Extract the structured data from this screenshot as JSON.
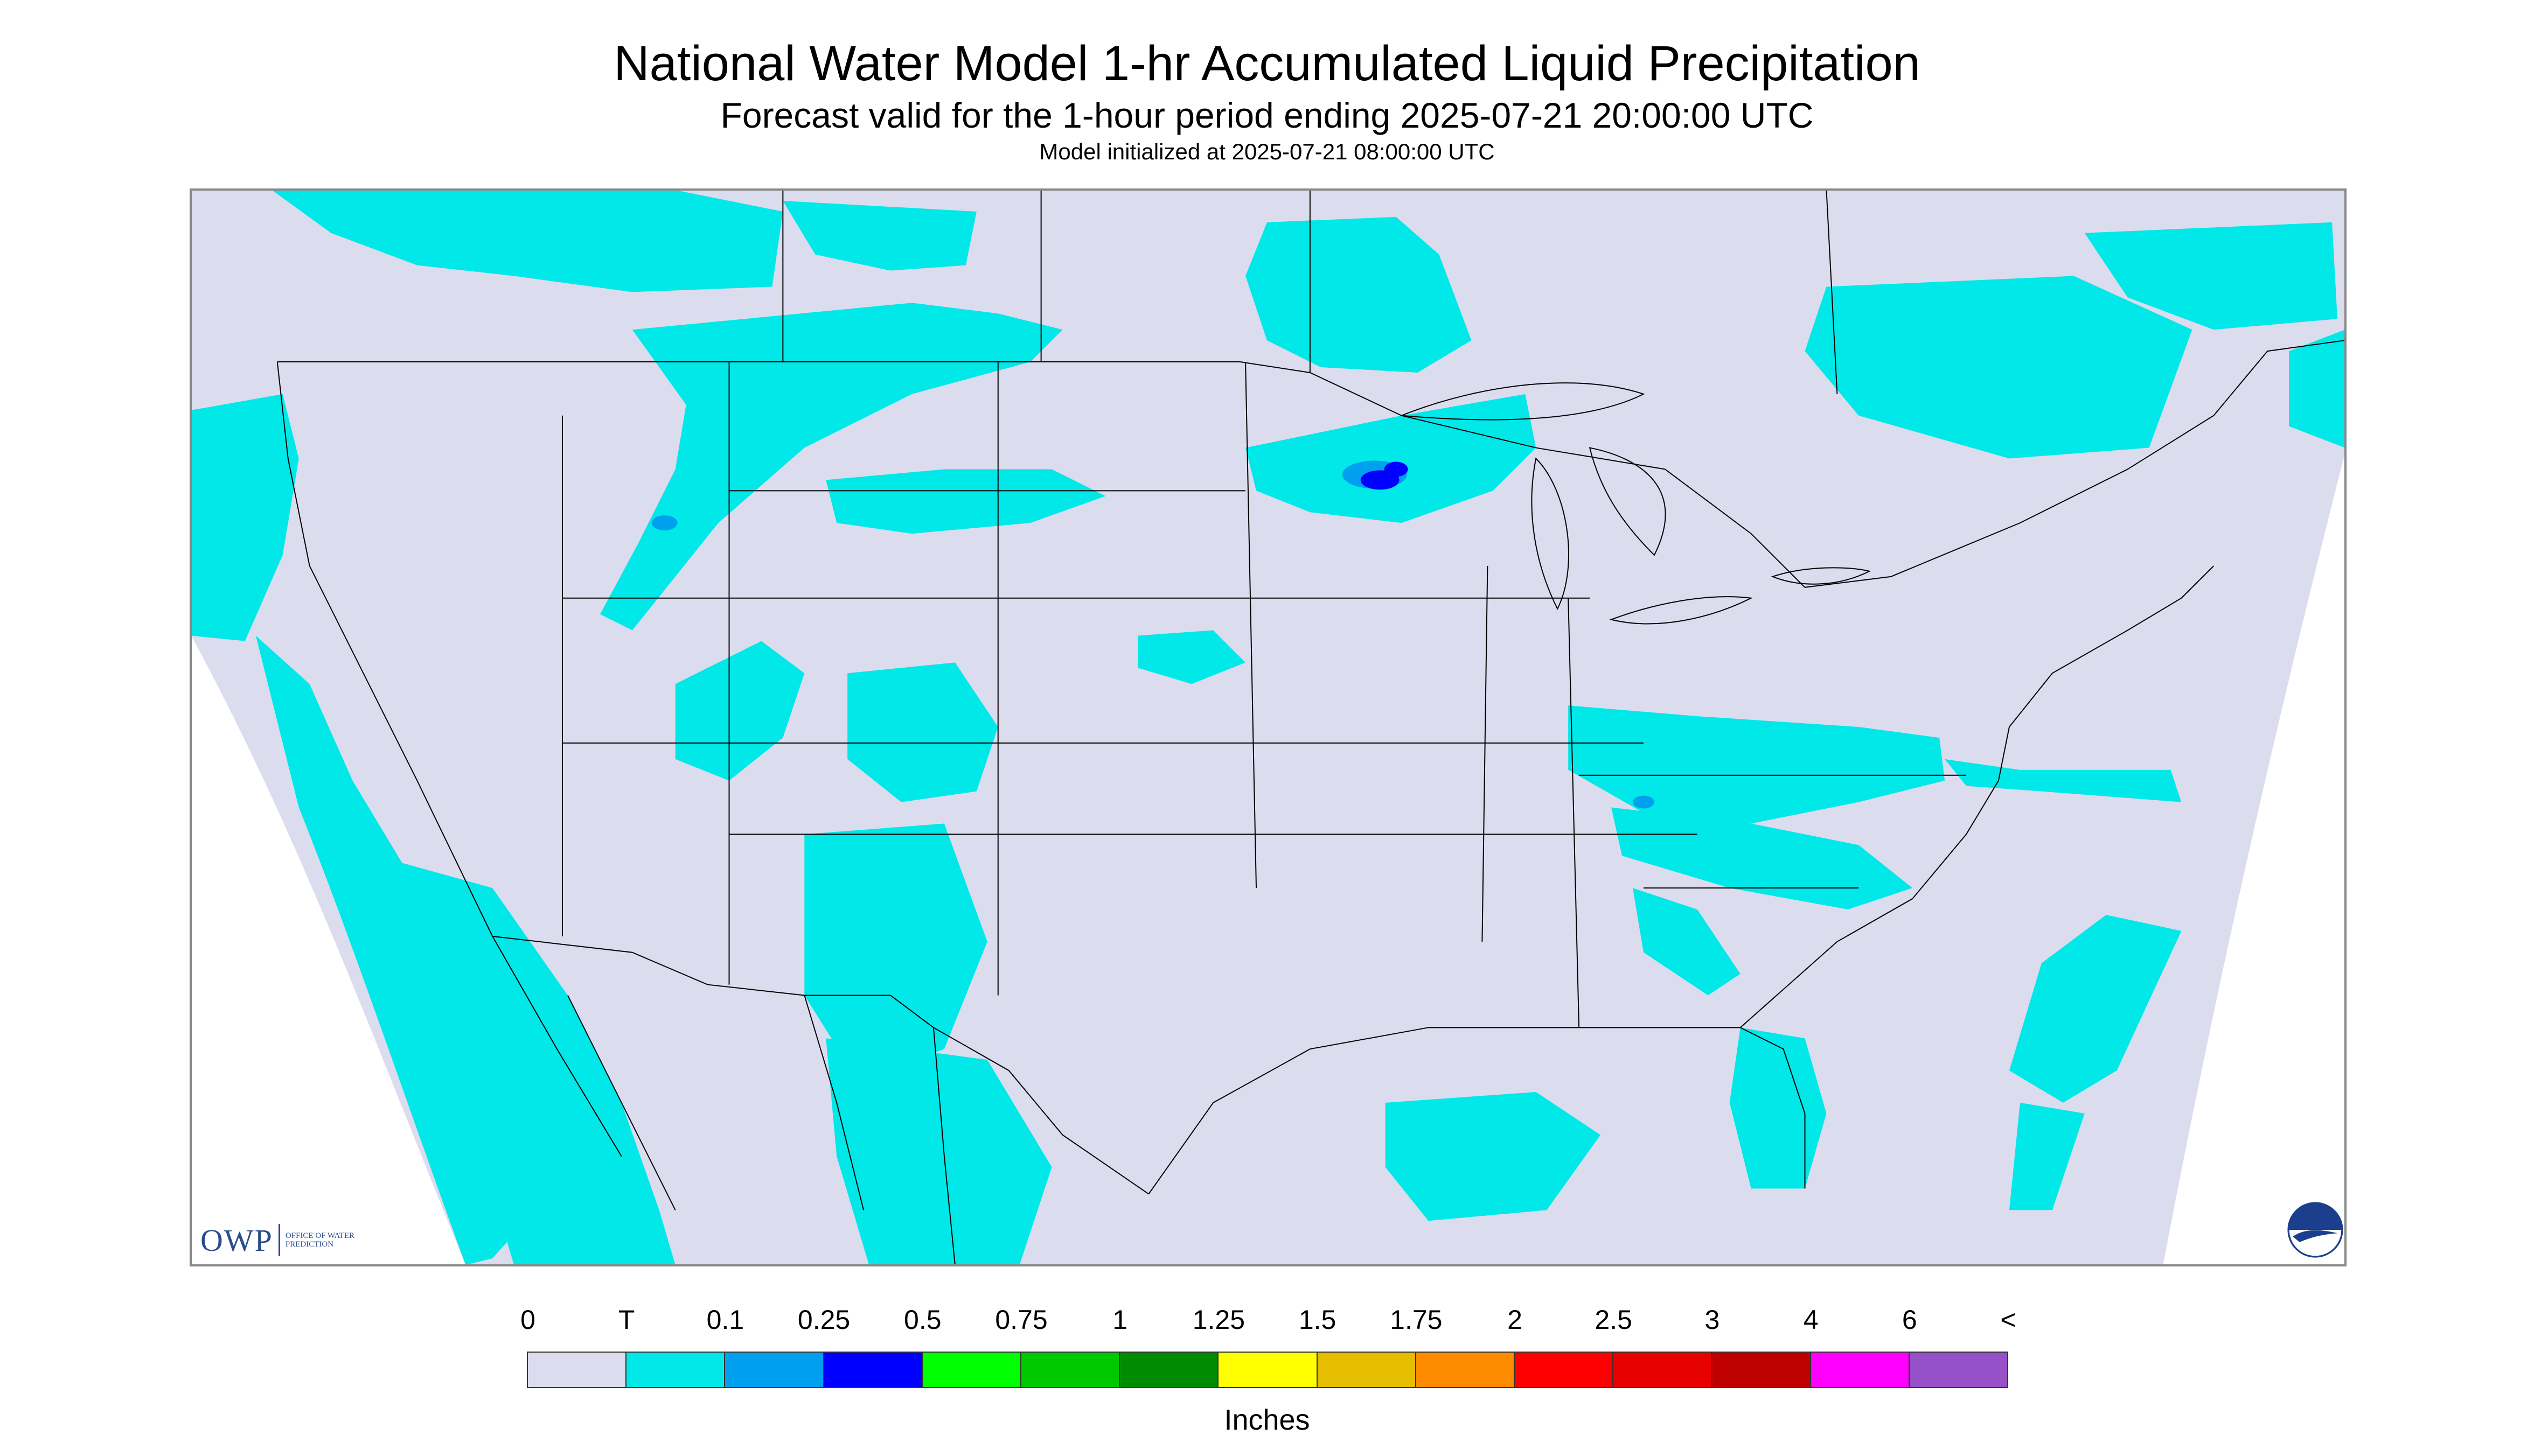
{
  "header": {
    "title": "National Water Model 1-hr Accumulated Liquid Precipitation",
    "subtitle": "Forecast valid for the 1-hour period ending 2025-07-21 20:00:00 UTC",
    "init": "Model initialized at 2025-07-21 08:00:00 UTC"
  },
  "logos": {
    "owp": "OWP",
    "owp_small": "OFFICE OF WATER PREDICTION",
    "noaa": "NOAA"
  },
  "colors": {
    "background_domain": "#dcdcef",
    "outside_domain": "#ffffff",
    "borders": "#000000",
    "trace": "#00e8e8",
    "light": "#00a0ee",
    "moderate": "#0000ff"
  },
  "legend": {
    "labels": [
      "0",
      "T",
      "0.1",
      "0.25",
      "0.5",
      "0.75",
      "1",
      "1.25",
      "1.5",
      "1.75",
      "2",
      "2.5",
      "3",
      "4",
      "6",
      "<"
    ],
    "colors": [
      "#dcdcef",
      "#00e8e8",
      "#00a0ee",
      "#0000ff",
      "#00ff00",
      "#00c800",
      "#008c00",
      "#ffff00",
      "#e6be00",
      "#ff8c00",
      "#ff0000",
      "#e60000",
      "#be0000",
      "#ff00ff",
      "#9650c8"
    ],
    "units": "Inches"
  },
  "map": {
    "projection_domain": "CONUS",
    "precip_regions": [
      {
        "area": "Pacific Northwest / British Columbia",
        "level": "trace"
      },
      {
        "area": "Montana / Idaho band",
        "level": "trace"
      },
      {
        "area": "Minnesota / Lake Superior",
        "level": "moderate"
      },
      {
        "area": "Colorado / New Mexico / Arizona monsoon",
        "level": "trace"
      },
      {
        "area": "Mexico / Baja California",
        "level": "trace"
      },
      {
        "area": "Ohio Valley / Mid-Atlantic",
        "level": "trace"
      },
      {
        "area": "Southeast / Florida",
        "level": "trace"
      },
      {
        "area": "Ontario / Quebec",
        "level": "trace"
      },
      {
        "area": "Western Atlantic",
        "level": "trace"
      }
    ]
  }
}
